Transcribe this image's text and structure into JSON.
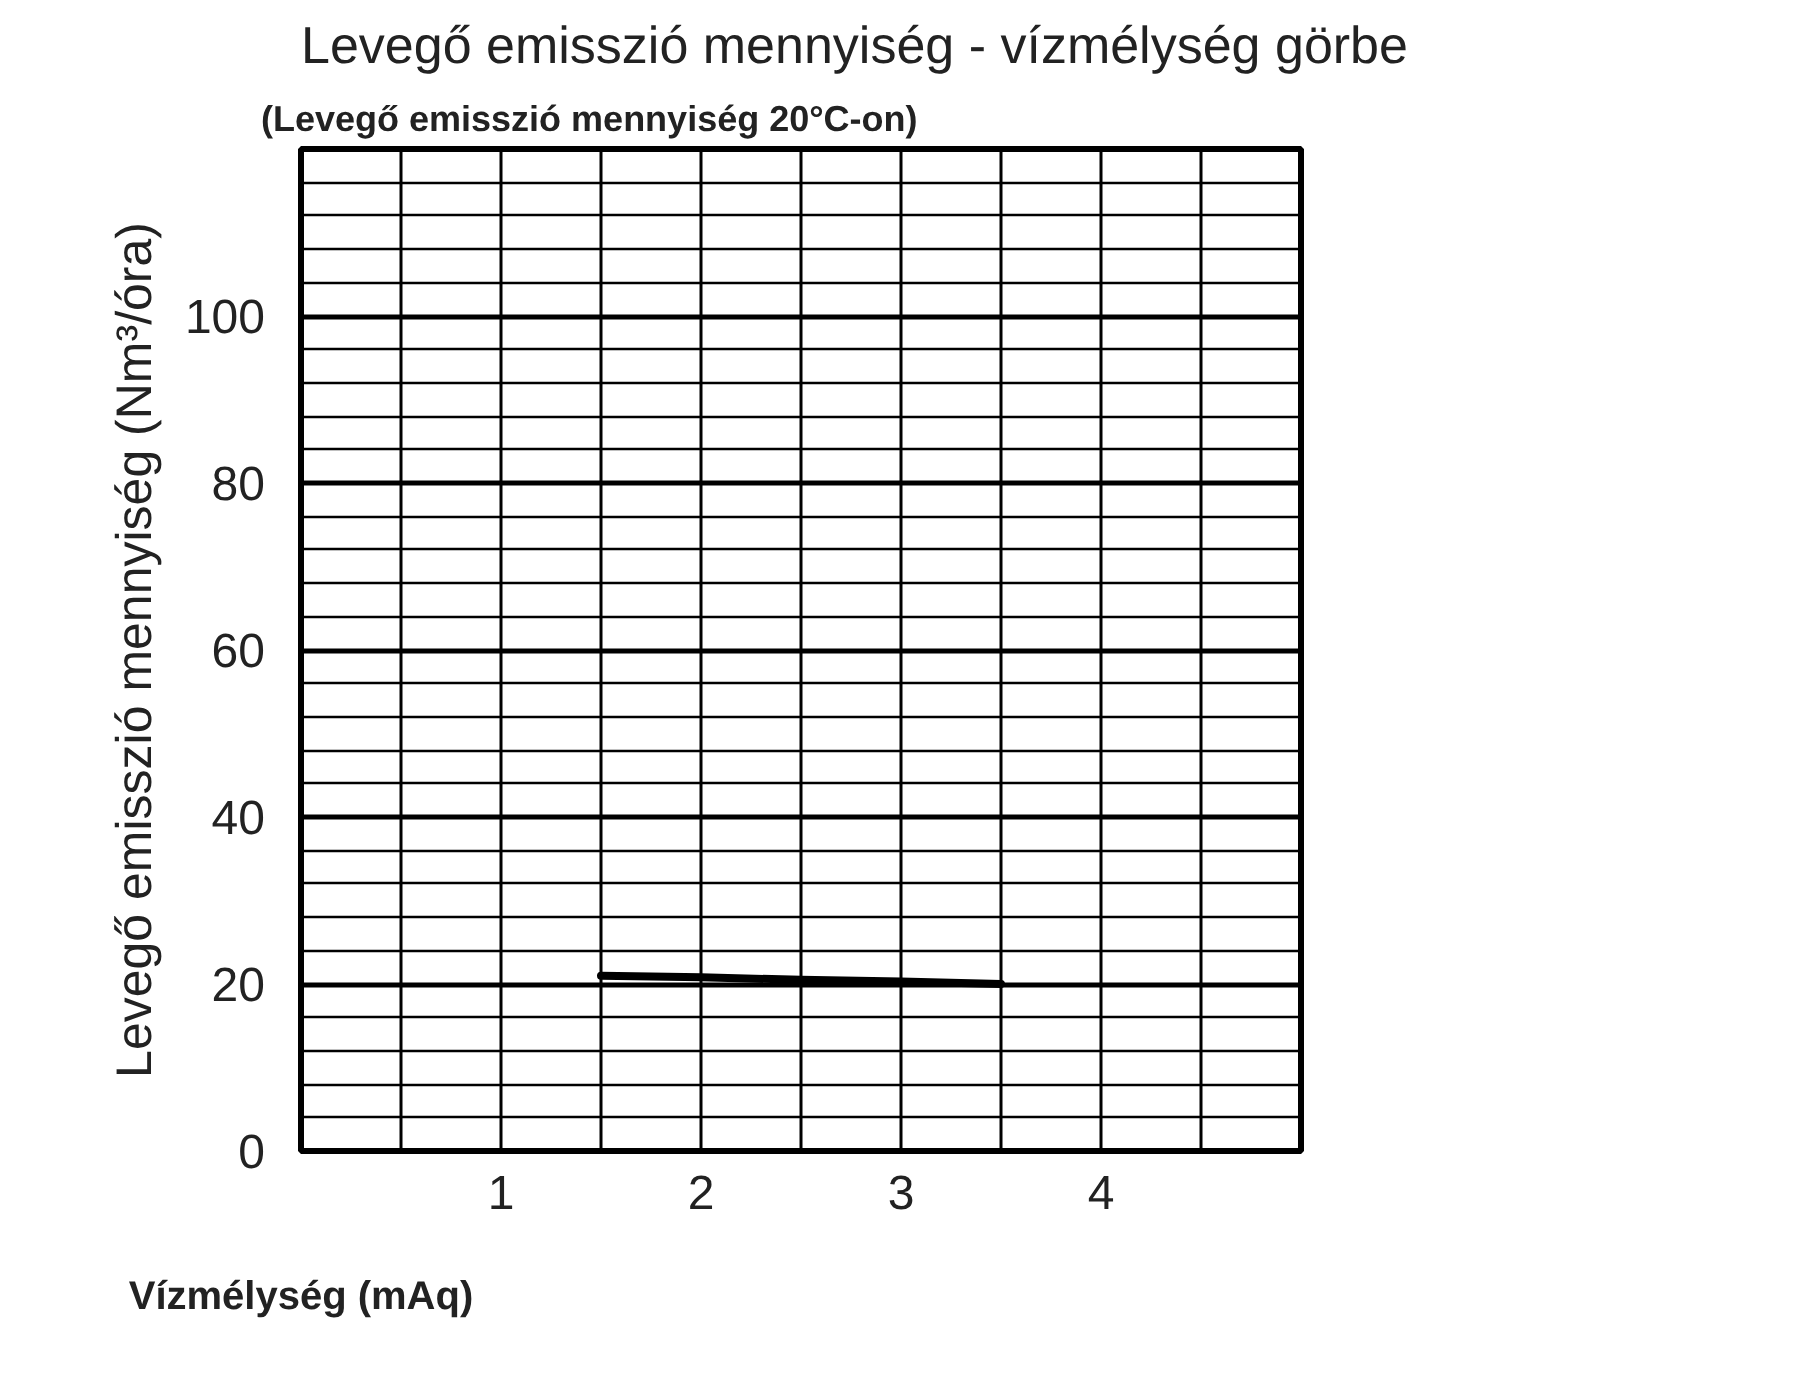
{
  "chart_data": {
    "type": "line",
    "title": "Levegő emisszió mennyiség - vízmélység görbe",
    "subtitle": "(Levegő emisszió mennyiség 20°C-on)",
    "xlabel": "Vízmélység (mAq)",
    "ylabel": "Levegő emisszió mennyiség (Nm³/óra)",
    "series": [
      {
        "color": "#000000",
        "x": [
          1.5,
          2,
          2.5,
          3,
          3.5
        ],
        "values": [
          21,
          20.8,
          20.5,
          20.3,
          20
        ]
      }
    ],
    "xlim": [
      0,
      5
    ],
    "xticks": [
      {
        "value": 0.5,
        "label": null
      },
      1,
      {
        "value": 1.5,
        "label": null
      },
      2,
      {
        "value": 2.5,
        "label": null
      },
      3,
      {
        "value": 3.5,
        "label": null
      },
      4,
      {
        "value": 4.5,
        "label": null
      }
    ],
    "ylim": [
      0,
      120
    ],
    "yticks": [
      0,
      {
        "value": 4,
        "label": null
      },
      {
        "value": 8,
        "label": null
      },
      {
        "value": 12,
        "label": null
      },
      {
        "value": 16,
        "label": null
      },
      20,
      {
        "value": 24,
        "label": null
      },
      {
        "value": 28,
        "label": null
      },
      {
        "value": 32,
        "label": null
      },
      {
        "value": 36,
        "label": null
      },
      40,
      {
        "value": 44,
        "label": null
      },
      {
        "value": 48,
        "label": null
      },
      {
        "value": 52,
        "label": null
      },
      {
        "value": 56,
        "label": null
      },
      60,
      {
        "value": 64,
        "label": null
      },
      {
        "value": 68,
        "label": null
      },
      {
        "value": 72,
        "label": null
      },
      {
        "value": 76,
        "label": null
      },
      80,
      {
        "value": 84,
        "label": null
      },
      {
        "value": 88,
        "label": null
      },
      {
        "value": 92,
        "label": null
      },
      {
        "value": 96,
        "label": null
      },
      100,
      {
        "value": 104,
        "label": null
      },
      {
        "value": 108,
        "label": null
      },
      {
        "value": 112,
        "label": null
      },
      {
        "value": 116,
        "label": null
      }
    ],
    "grid": true,
    "marker": "none",
    "line_style": "solid"
  }
}
